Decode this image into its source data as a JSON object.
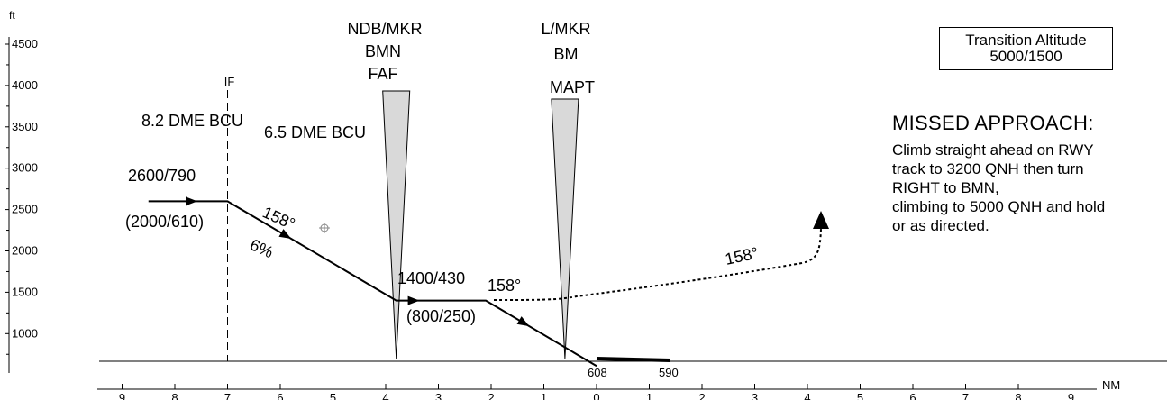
{
  "axes": {
    "alt_unit": "ft",
    "dist_unit": "NM",
    "alt_ticks": [
      {
        "v": 4500,
        "label": "4500"
      },
      {
        "v": 4000,
        "label": "4000"
      },
      {
        "v": 3500,
        "label": "3500"
      },
      {
        "v": 3000,
        "label": "3000"
      },
      {
        "v": 2500,
        "label": "2500"
      },
      {
        "v": 2000,
        "label": "2000"
      },
      {
        "v": 1500,
        "label": "1500"
      },
      {
        "v": 1000,
        "label": "1000"
      }
    ],
    "dist_ticks": [
      {
        "v": -9,
        "label": "9"
      },
      {
        "v": -8,
        "label": "8"
      },
      {
        "v": -7,
        "label": "7"
      },
      {
        "v": -6,
        "label": "6"
      },
      {
        "v": -5,
        "label": "5"
      },
      {
        "v": -4,
        "label": "4"
      },
      {
        "v": -3,
        "label": "3"
      },
      {
        "v": -2,
        "label": "2"
      },
      {
        "v": -1,
        "label": "1"
      },
      {
        "v": 0,
        "label": "0"
      },
      {
        "v": 1,
        "label": "1"
      },
      {
        "v": 2,
        "label": "2"
      },
      {
        "v": 3,
        "label": "3"
      },
      {
        "v": 4,
        "label": "4"
      },
      {
        "v": 5,
        "label": "5"
      },
      {
        "v": 6,
        "label": "6"
      },
      {
        "v": 7,
        "label": "7"
      },
      {
        "v": 8,
        "label": "8"
      },
      {
        "v": 9,
        "label": "9"
      }
    ]
  },
  "fixes": {
    "if": {
      "label": "IF",
      "dme": "8.2 DME BCU",
      "dist": -7
    },
    "dme65": {
      "dme": "6.5 DME BCU",
      "dist": -5
    },
    "faf": {
      "line1": "NDB/MKR",
      "line2": "BMN",
      "line3": "FAF",
      "dist": -3.8
    },
    "mapt": {
      "line1": "L/MKR",
      "line2": "BM",
      "line3": "MAPT",
      "dist": -0.6
    }
  },
  "profile": {
    "points": [
      {
        "d": -8.5,
        "alt": 2600
      },
      {
        "d": -7.0,
        "alt": 2600
      },
      {
        "d": -3.8,
        "alt": 1400
      },
      {
        "d": -2.1,
        "alt": 1400
      },
      {
        "d": 0.0,
        "alt": 608
      }
    ],
    "initial": {
      "alt": "2600/790",
      "hgt": "(2000/610)"
    },
    "descent": {
      "track": "158°",
      "gradient": "6%"
    },
    "intermediate": {
      "alt": "1400/430",
      "hgt": "(800/250)",
      "track": "158°"
    },
    "runway": {
      "elev_start": "608",
      "elev_end": "590",
      "end_dist": 1.4
    }
  },
  "missed_track": "158°",
  "transition": {
    "line1": "Transition Altitude",
    "line2": "5000/1500"
  },
  "missed_approach": {
    "heading": "MISSED APPROACH:",
    "lines": [
      "Climb straight ahead on RWY",
      "track to 3200 QNH then turn",
      "RIGHT to BMN,",
      "climbing to 5000 QNH and hold",
      "or as directed."
    ]
  }
}
